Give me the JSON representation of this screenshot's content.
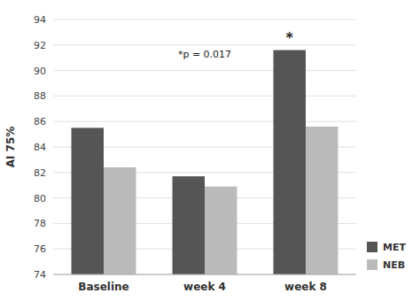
{
  "chart_data": {
    "type": "bar",
    "categories": [
      "Baseline",
      "week 4",
      "week 8"
    ],
    "series": [
      {
        "name": "MET",
        "color": "#555555",
        "values": [
          85.5,
          81.7,
          91.6
        ]
      },
      {
        "name": "NEB",
        "color": "#bbbbbb",
        "values": [
          82.4,
          80.9,
          85.6
        ]
      }
    ],
    "y_label": "AI 75%",
    "ylim": [
      74,
      94
    ],
    "yticks": [
      74,
      76,
      78,
      80,
      82,
      84,
      86,
      88,
      90,
      92,
      94
    ],
    "grid": true,
    "legend": "lower right",
    "annotations": [
      {
        "text": "*p = 0.017",
        "category": "week 4",
        "y": 90.8
      },
      {
        "text": "*",
        "category": "week 8",
        "series": "MET",
        "y": 92
      }
    ]
  }
}
